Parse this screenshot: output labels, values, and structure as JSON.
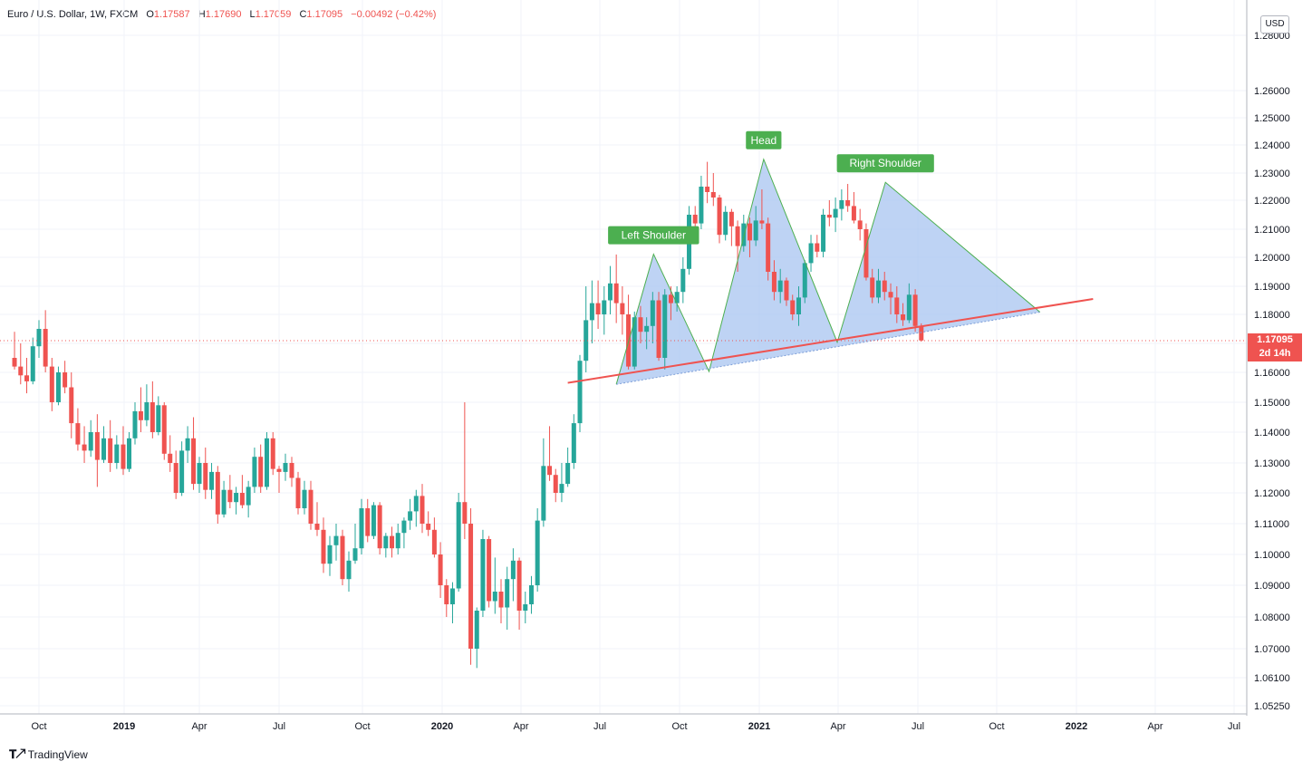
{
  "header": {
    "symbol": "Euro / U.S. Dollar, 1W, FXCM",
    "open_label": "O",
    "open": "1.17587",
    "high_label": "H",
    "high": "1.17690",
    "low_label": "L",
    "low": "1.17059",
    "close_label": "C",
    "close": "1.17095",
    "change": "−0.00492 (−0.42%)"
  },
  "currency": "USD",
  "last_price": {
    "value": "1.17095",
    "countdown": "2d 14h"
  },
  "branding": "TradingView",
  "colors": {
    "up": "#26a69a",
    "down": "#ef5350",
    "pattern_fill": "#a8c4f0",
    "pattern_line": "#4caf50",
    "label_bg": "#4caf50",
    "trendline": "#ef5350"
  },
  "chart_data": {
    "type": "candlestick",
    "timeframe": "1W",
    "y_ticks": [
      "1.28000",
      "1.26000",
      "1.25000",
      "1.24000",
      "1.23000",
      "1.22000",
      "1.21000",
      "1.20000",
      "1.19000",
      "1.18000",
      "1.17000",
      "1.16000",
      "1.15000",
      "1.14000",
      "1.13000",
      "1.12000",
      "1.11000",
      "1.10000",
      "1.09000",
      "1.08000",
      "1.07000",
      "1.06100",
      "1.05250"
    ],
    "x_ticks": [
      {
        "label": "Oct",
        "bold": false,
        "date": "2018-10"
      },
      {
        "label": "2019",
        "bold": true,
        "date": "2019-01"
      },
      {
        "label": "Apr",
        "bold": false,
        "date": "2019-04"
      },
      {
        "label": "Jul",
        "bold": false,
        "date": "2019-07"
      },
      {
        "label": "Oct",
        "bold": false,
        "date": "2019-10"
      },
      {
        "label": "2020",
        "bold": true,
        "date": "2020-01"
      },
      {
        "label": "Apr",
        "bold": false,
        "date": "2020-04"
      },
      {
        "label": "Jul",
        "bold": false,
        "date": "2020-07"
      },
      {
        "label": "Oct",
        "bold": false,
        "date": "2020-10"
      },
      {
        "label": "2021",
        "bold": true,
        "date": "2021-01"
      },
      {
        "label": "Apr",
        "bold": false,
        "date": "2021-04"
      },
      {
        "label": "Jul",
        "bold": false,
        "date": "2021-07"
      },
      {
        "label": "Oct",
        "bold": false,
        "date": "2021-10"
      },
      {
        "label": "2022",
        "bold": true,
        "date": "2022-01"
      },
      {
        "label": "Apr",
        "bold": false,
        "date": "2022-04"
      },
      {
        "label": "Jul",
        "bold": false,
        "date": "2022-07"
      }
    ],
    "candles": [
      [
        1.165,
        1.174,
        1.161,
        1.162
      ],
      [
        1.162,
        1.17,
        1.156,
        1.159
      ],
      [
        1.159,
        1.165,
        1.153,
        1.157
      ],
      [
        1.157,
        1.172,
        1.156,
        1.169
      ],
      [
        1.169,
        1.178,
        1.165,
        1.175
      ],
      [
        1.175,
        1.1815,
        1.16,
        1.162
      ],
      [
        1.162,
        1.165,
        1.147,
        1.15
      ],
      [
        1.15,
        1.162,
        1.149,
        1.16
      ],
      [
        1.16,
        1.164,
        1.153,
        1.155
      ],
      [
        1.155,
        1.16,
        1.138,
        1.143
      ],
      [
        1.143,
        1.148,
        1.134,
        1.136
      ],
      [
        1.136,
        1.142,
        1.13,
        1.134
      ],
      [
        1.134,
        1.144,
        1.132,
        1.14
      ],
      [
        1.14,
        1.146,
        1.122,
        1.131
      ],
      [
        1.131,
        1.142,
        1.13,
        1.138
      ],
      [
        1.138,
        1.144,
        1.127,
        1.13
      ],
      [
        1.13,
        1.139,
        1.128,
        1.136
      ],
      [
        1.136,
        1.142,
        1.126,
        1.128
      ],
      [
        1.128,
        1.14,
        1.127,
        1.138
      ],
      [
        1.138,
        1.15,
        1.136,
        1.147
      ],
      [
        1.147,
        1.155,
        1.14,
        1.144
      ],
      [
        1.144,
        1.156,
        1.142,
        1.15
      ],
      [
        1.15,
        1.157,
        1.138,
        1.14
      ],
      [
        1.14,
        1.152,
        1.139,
        1.149
      ],
      [
        1.149,
        1.15,
        1.131,
        1.133
      ],
      [
        1.133,
        1.139,
        1.127,
        1.13
      ],
      [
        1.13,
        1.134,
        1.118,
        1.12
      ],
      [
        1.12,
        1.137,
        1.119,
        1.134
      ],
      [
        1.134,
        1.142,
        1.13,
        1.138
      ],
      [
        1.138,
        1.145,
        1.121,
        1.123
      ],
      [
        1.123,
        1.132,
        1.12,
        1.13
      ],
      [
        1.13,
        1.135,
        1.118,
        1.121
      ],
      [
        1.121,
        1.13,
        1.118,
        1.127
      ],
      [
        1.127,
        1.129,
        1.11,
        1.113
      ],
      [
        1.113,
        1.124,
        1.112,
        1.121
      ],
      [
        1.121,
        1.126,
        1.115,
        1.117
      ],
      [
        1.117,
        1.122,
        1.113,
        1.12
      ],
      [
        1.12,
        1.126,
        1.115,
        1.116
      ],
      [
        1.116,
        1.124,
        1.112,
        1.122
      ],
      [
        1.122,
        1.135,
        1.12,
        1.132
      ],
      [
        1.132,
        1.136,
        1.12,
        1.122
      ],
      [
        1.122,
        1.14,
        1.121,
        1.138
      ],
      [
        1.138,
        1.14,
        1.126,
        1.128
      ],
      [
        1.128,
        1.129,
        1.12,
        1.127
      ],
      [
        1.127,
        1.133,
        1.124,
        1.13
      ],
      [
        1.13,
        1.132,
        1.122,
        1.125
      ],
      [
        1.125,
        1.127,
        1.113,
        1.115
      ],
      [
        1.115,
        1.124,
        1.113,
        1.121
      ],
      [
        1.121,
        1.124,
        1.108,
        1.11
      ],
      [
        1.11,
        1.117,
        1.106,
        1.108
      ],
      [
        1.108,
        1.112,
        1.094,
        1.097
      ],
      [
        1.097,
        1.106,
        1.093,
        1.103
      ],
      [
        1.103,
        1.11,
        1.098,
        1.106
      ],
      [
        1.106,
        1.108,
        1.09,
        1.092
      ],
      [
        1.092,
        1.101,
        1.088,
        1.098
      ],
      [
        1.098,
        1.11,
        1.097,
        1.102
      ],
      [
        1.102,
        1.118,
        1.1,
        1.115
      ],
      [
        1.115,
        1.118,
        1.104,
        1.106
      ],
      [
        1.106,
        1.117,
        1.105,
        1.116
      ],
      [
        1.116,
        1.117,
        1.1,
        1.102
      ],
      [
        1.102,
        1.107,
        1.099,
        1.106
      ],
      [
        1.106,
        1.109,
        1.099,
        1.102
      ],
      [
        1.102,
        1.11,
        1.1,
        1.107
      ],
      [
        1.107,
        1.112,
        1.102,
        1.111
      ],
      [
        1.111,
        1.118,
        1.108,
        1.114
      ],
      [
        1.114,
        1.121,
        1.109,
        1.119
      ],
      [
        1.119,
        1.123,
        1.107,
        1.11
      ],
      [
        1.11,
        1.114,
        1.106,
        1.108
      ],
      [
        1.108,
        1.112,
        1.099,
        1.1
      ],
      [
        1.1,
        1.104,
        1.086,
        1.09
      ],
      [
        1.09,
        1.092,
        1.08,
        1.084
      ],
      [
        1.084,
        1.091,
        1.078,
        1.089
      ],
      [
        1.089,
        1.12,
        1.088,
        1.117
      ],
      [
        1.117,
        1.15,
        1.105,
        1.11
      ],
      [
        1.11,
        1.115,
        1.065,
        1.07
      ],
      [
        1.07,
        1.083,
        1.064,
        1.082
      ],
      [
        1.082,
        1.108,
        1.08,
        1.105
      ],
      [
        1.105,
        1.106,
        1.083,
        1.085
      ],
      [
        1.085,
        1.099,
        1.081,
        1.088
      ],
      [
        1.088,
        1.092,
        1.078,
        1.083
      ],
      [
        1.083,
        1.096,
        1.076,
        1.092
      ],
      [
        1.092,
        1.102,
        1.085,
        1.098
      ],
      [
        1.098,
        1.099,
        1.076,
        1.082
      ],
      [
        1.082,
        1.088,
        1.078,
        1.084
      ],
      [
        1.084,
        1.093,
        1.081,
        1.09
      ],
      [
        1.09,
        1.115,
        1.088,
        1.111
      ],
      [
        1.111,
        1.138,
        1.109,
        1.129
      ],
      [
        1.129,
        1.142,
        1.124,
        1.126
      ],
      [
        1.126,
        1.128,
        1.117,
        1.12
      ],
      [
        1.12,
        1.13,
        1.117,
        1.123
      ],
      [
        1.123,
        1.135,
        1.122,
        1.13
      ],
      [
        1.13,
        1.146,
        1.128,
        1.143
      ],
      [
        1.143,
        1.166,
        1.14,
        1.164
      ],
      [
        1.164,
        1.19,
        1.16,
        1.178
      ],
      [
        1.178,
        1.192,
        1.17,
        1.184
      ],
      [
        1.184,
        1.192,
        1.175,
        1.18
      ],
      [
        1.18,
        1.19,
        1.173,
        1.185
      ],
      [
        1.185,
        1.197,
        1.18,
        1.191
      ],
      [
        1.191,
        1.201,
        1.177,
        1.184
      ],
      [
        1.184,
        1.19,
        1.173,
        1.18
      ],
      [
        1.18,
        1.187,
        1.161,
        1.162
      ],
      [
        1.162,
        1.181,
        1.161,
        1.179
      ],
      [
        1.179,
        1.183,
        1.17,
        1.174
      ],
      [
        1.174,
        1.179,
        1.168,
        1.176
      ],
      [
        1.176,
        1.188,
        1.17,
        1.185
      ],
      [
        1.185,
        1.188,
        1.164,
        1.165
      ],
      [
        1.165,
        1.189,
        1.161,
        1.187
      ],
      [
        1.187,
        1.19,
        1.178,
        1.184
      ],
      [
        1.184,
        1.19,
        1.181,
        1.188
      ],
      [
        1.188,
        1.2,
        1.184,
        1.196
      ],
      [
        1.196,
        1.218,
        1.194,
        1.215
      ],
      [
        1.215,
        1.218,
        1.208,
        1.212
      ],
      [
        1.212,
        1.229,
        1.21,
        1.225
      ],
      [
        1.225,
        1.234,
        1.219,
        1.223
      ],
      [
        1.223,
        1.23,
        1.218,
        1.221
      ],
      [
        1.221,
        1.222,
        1.205,
        1.208
      ],
      [
        1.208,
        1.218,
        1.206,
        1.216
      ],
      [
        1.216,
        1.217,
        1.204,
        1.211
      ],
      [
        1.211,
        1.213,
        1.195,
        1.204
      ],
      [
        1.204,
        1.215,
        1.202,
        1.212
      ],
      [
        1.212,
        1.214,
        1.2,
        1.206
      ],
      [
        1.206,
        1.218,
        1.204,
        1.213
      ],
      [
        1.213,
        1.224,
        1.21,
        1.212
      ],
      [
        1.212,
        1.214,
        1.192,
        1.195
      ],
      [
        1.195,
        1.199,
        1.185,
        1.188
      ],
      [
        1.188,
        1.196,
        1.184,
        1.192
      ],
      [
        1.192,
        1.193,
        1.183,
        1.185
      ],
      [
        1.185,
        1.187,
        1.178,
        1.18
      ],
      [
        1.18,
        1.19,
        1.176,
        1.186
      ],
      [
        1.186,
        1.199,
        1.184,
        1.198
      ],
      [
        1.198,
        1.208,
        1.195,
        1.205
      ],
      [
        1.205,
        1.208,
        1.2,
        1.202
      ],
      [
        1.202,
        1.217,
        1.2,
        1.215
      ],
      [
        1.215,
        1.22,
        1.211,
        1.214
      ],
      [
        1.214,
        1.221,
        1.209,
        1.217
      ],
      [
        1.217,
        1.224,
        1.213,
        1.22
      ],
      [
        1.22,
        1.226,
        1.216,
        1.218
      ],
      [
        1.218,
        1.223,
        1.212,
        1.213
      ],
      [
        1.213,
        1.217,
        1.206,
        1.21
      ],
      [
        1.21,
        1.212,
        1.192,
        1.193
      ],
      [
        1.193,
        1.196,
        1.184,
        1.186
      ],
      [
        1.186,
        1.196,
        1.184,
        1.192
      ],
      [
        1.192,
        1.195,
        1.185,
        1.188
      ],
      [
        1.188,
        1.191,
        1.18,
        1.186
      ],
      [
        1.186,
        1.19,
        1.177,
        1.18
      ],
      [
        1.18,
        1.184,
        1.176,
        1.178
      ],
      [
        1.178,
        1.191,
        1.177,
        1.187
      ],
      [
        1.187,
        1.189,
        1.174,
        1.176
      ],
      [
        1.1759,
        1.1769,
        1.1706,
        1.171
      ]
    ],
    "annotations": [
      {
        "text": "Left Shoulder",
        "date": "2020-09-01",
        "price": 1.2011
      },
      {
        "text": "Head",
        "date": "2021-01-06",
        "price": 1.2349
      },
      {
        "text": "Right Shoulder",
        "date": "2021-05-25",
        "price": 1.2266
      }
    ],
    "pattern": {
      "type": "head-and-shoulders",
      "points": [
        {
          "date": "2020-07-20",
          "price": 1.156
        },
        {
          "date": "2020-09-01",
          "price": 1.2011
        },
        {
          "date": "2020-11-04",
          "price": 1.1603
        },
        {
          "date": "2021-01-06",
          "price": 1.2349
        },
        {
          "date": "2021-03-31",
          "price": 1.1704
        },
        {
          "date": "2021-05-25",
          "price": 1.2266
        },
        {
          "date": "2021-11-20",
          "price": 1.1808
        }
      ]
    },
    "trendline": {
      "from": {
        "date": "2020-05-25",
        "price": 1.1565
      },
      "to": {
        "date": "2022-01-20",
        "price": 1.1855
      }
    },
    "last_price": 1.17095
  }
}
